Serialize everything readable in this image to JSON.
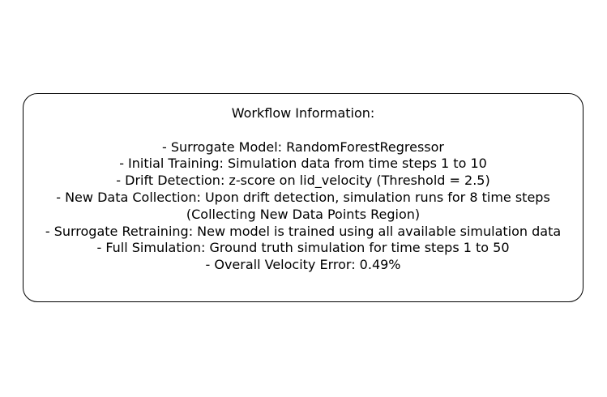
{
  "workflow": {
    "heading": "Workflow Information:",
    "lines": [
      "- Surrogate Model: RandomForestRegressor",
      "- Initial Training: Simulation data from time steps 1 to 10",
      "- Drift Detection: z-score on lid_velocity (Threshold = 2.5)",
      "- New Data Collection: Upon drift detection, simulation runs for 8 time steps",
      "(Collecting New Data Points Region)",
      "- Surrogate Retraining: New model is trained using all available simulation data",
      "- Full Simulation: Ground truth simulation for time steps 1 to 50",
      "- Overall Velocity Error: 0.49%"
    ]
  }
}
